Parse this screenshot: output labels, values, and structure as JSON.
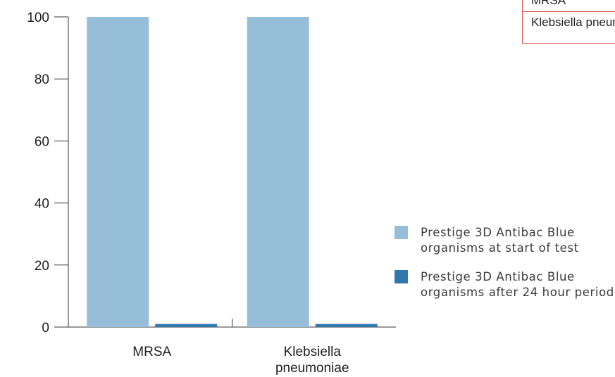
{
  "chart_data": {
    "type": "bar",
    "categories": [
      "MRSA",
      "Klebsiella pneumoniae"
    ],
    "category_lines": [
      [
        "MRSA"
      ],
      [
        "Klebsiella",
        "pneumoniae"
      ]
    ],
    "series": [
      {
        "name": "Prestige 3D Antibac Blue organisms at start of test",
        "values": [
          100,
          100
        ],
        "color": "#97bed8"
      },
      {
        "name": "Prestige 3D Antibac Blue organisms after 24 hour period",
        "values": [
          1,
          1
        ],
        "color": "#2f78ad"
      }
    ],
    "yticks": [
      "0",
      "20",
      "40",
      "60",
      "80",
      "100"
    ],
    "ylim": [
      0,
      100
    ],
    "title": "",
    "xlabel": "",
    "ylabel": "",
    "grid": false,
    "legend_position": "right"
  },
  "legend": {
    "items": [
      {
        "label": "Prestige 3D Antibac Blue organisms at start of test",
        "color": "#97bed8"
      },
      {
        "label": "Prestige 3D Antibac Blue organisms after 24 hour period",
        "color": "#2f78ad"
      }
    ]
  },
  "table_fragment": {
    "rows": [
      "MRSA",
      "Klebsiella pneumoniae"
    ],
    "border_color": "#d9534f"
  }
}
